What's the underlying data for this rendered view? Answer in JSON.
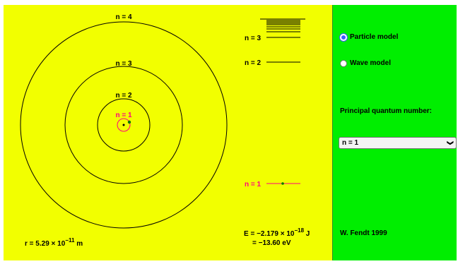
{
  "simulation": {
    "orbit_labels": [
      "n = 1",
      "n = 2",
      "n = 3",
      "n = 4"
    ],
    "level_labels": [
      "n = 1",
      "n = 2",
      "n = 3"
    ],
    "radius_readout": {
      "prefix": "r = 5.29 × 10",
      "exponent": "−11",
      "unit": " m"
    },
    "energy_readout": {
      "joule_prefix": "E = −2.179 × 10",
      "joule_exponent": "−18",
      "joule_unit": " J",
      "ev": "= −13.60 eV"
    },
    "colors": {
      "background": "#f2ff00",
      "panel": "#00ee00",
      "active_state": "#ff0080",
      "electron": "#007a00",
      "nucleus": "#000000"
    }
  },
  "panel": {
    "model_options": [
      {
        "label": "Particle model",
        "checked": true
      },
      {
        "label": "Wave model",
        "checked": false
      }
    ],
    "quantum_number_label": "Principal quantum number:",
    "quantum_number_selected": "n = 1",
    "dropdown_icon": "chevron-down-icon",
    "author": "W. Fendt 1999"
  }
}
